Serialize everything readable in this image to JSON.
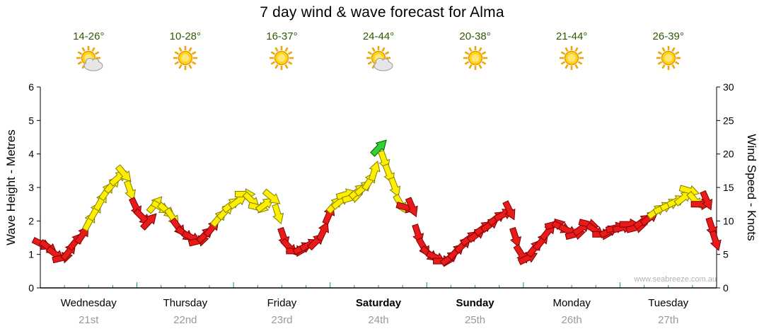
{
  "chart_data": {
    "type": "wind-arrow-timeseries",
    "title": "7 day wind & wave forecast for Alma",
    "watermark": "www.seabreeze.com.au",
    "y_left": {
      "label": "Wave Height - Metres",
      "min": 0,
      "max": 6,
      "ticks": [
        0,
        1,
        2,
        3,
        4,
        5,
        6
      ]
    },
    "y_right": {
      "label": "Wind Speed - Knots",
      "min": 0,
      "max": 30,
      "ticks": [
        0,
        5,
        10,
        15,
        20,
        25,
        30
      ]
    },
    "days": [
      {
        "name": "Wednesday",
        "date": "21st",
        "temp": "14-26°",
        "icon": "sun-cloud",
        "bold": false
      },
      {
        "name": "Thursday",
        "date": "22nd",
        "temp": "10-28°",
        "icon": "sun",
        "bold": false
      },
      {
        "name": "Friday",
        "date": "23rd",
        "temp": "16-37°",
        "icon": "sun",
        "bold": false
      },
      {
        "name": "Saturday",
        "date": "24th",
        "temp": "24-44°",
        "icon": "sun-cloud",
        "bold": true
      },
      {
        "name": "Sunday",
        "date": "25th",
        "temp": "20-38°",
        "icon": "sun",
        "bold": true
      },
      {
        "name": "Monday",
        "date": "26th",
        "temp": "21-44°",
        "icon": "sun",
        "bold": false
      },
      {
        "name": "Tuesday",
        "date": "27th",
        "temp": "26-39°",
        "icon": "sun",
        "bold": false
      }
    ],
    "colors": {
      "r": "#E81A1A",
      "y": "#FFEE00",
      "g": "#2FD12F"
    },
    "outline_colors": {
      "r": "#7E0000",
      "y": "#7E7E00",
      "g": "#005800"
    },
    "text_colors": {
      "temperature": "#2F5B00",
      "date": "#999999",
      "tick": "#000000",
      "time_tick": "#009999"
    },
    "series": [
      {
        "name": "Wind speed and direction",
        "unit": "knots",
        "x_unit": "days from Wednesday 21st",
        "points": [
          [
            0.02,
            6.5,
            "r"
          ],
          [
            0.09,
            6,
            "r"
          ],
          [
            0.16,
            5,
            "r"
          ],
          [
            0.23,
            4.5,
            "r"
          ],
          [
            0.3,
            5.5,
            "r"
          ],
          [
            0.37,
            7,
            "r"
          ],
          [
            0.44,
            8,
            "r"
          ],
          [
            0.51,
            10,
            "y"
          ],
          [
            0.57,
            11.5,
            "y"
          ],
          [
            0.63,
            13,
            "y"
          ],
          [
            0.69,
            14.5,
            "y"
          ],
          [
            0.75,
            15.5,
            "y"
          ],
          [
            0.81,
            16.5,
            "y"
          ],
          [
            0.87,
            17,
            "y"
          ],
          [
            0.93,
            14.5,
            "y"
          ],
          [
            0.99,
            12,
            "r"
          ],
          [
            1.06,
            10.5,
            "r"
          ],
          [
            1.13,
            10,
            "r"
          ],
          [
            1.19,
            12.5,
            "y"
          ],
          [
            1.25,
            12,
            "y"
          ],
          [
            1.31,
            11.5,
            "y"
          ],
          [
            1.37,
            10.5,
            "y"
          ],
          [
            1.43,
            9,
            "r"
          ],
          [
            1.5,
            8,
            "r"
          ],
          [
            1.57,
            7.5,
            "r"
          ],
          [
            1.64,
            7,
            "r"
          ],
          [
            1.71,
            8,
            "r"
          ],
          [
            1.78,
            9,
            "r"
          ],
          [
            1.85,
            10.5,
            "y"
          ],
          [
            1.92,
            11.5,
            "y"
          ],
          [
            1.98,
            12.5,
            "y"
          ],
          [
            2.05,
            13,
            "y"
          ],
          [
            2.12,
            14,
            "y"
          ],
          [
            2.19,
            13,
            "y"
          ],
          [
            2.26,
            12,
            "y"
          ],
          [
            2.33,
            12.5,
            "y"
          ],
          [
            2.4,
            13.5,
            "y"
          ],
          [
            2.46,
            11,
            "y"
          ],
          [
            2.52,
            7.5,
            "r"
          ],
          [
            2.58,
            6,
            "r"
          ],
          [
            2.65,
            5.5,
            "r"
          ],
          [
            2.72,
            6,
            "r"
          ],
          [
            2.79,
            6.5,
            "r"
          ],
          [
            2.86,
            7,
            "r"
          ],
          [
            2.93,
            8.5,
            "r"
          ],
          [
            2.99,
            11,
            "r"
          ],
          [
            3.05,
            12.5,
            "y"
          ],
          [
            3.11,
            13,
            "y"
          ],
          [
            3.17,
            14,
            "y"
          ],
          [
            3.23,
            13.5,
            "y"
          ],
          [
            3.29,
            14.5,
            "y"
          ],
          [
            3.35,
            15,
            "y"
          ],
          [
            3.41,
            16,
            "y"
          ],
          [
            3.46,
            17.5,
            "y"
          ],
          [
            3.51,
            21,
            "g"
          ],
          [
            3.56,
            19,
            "y"
          ],
          [
            3.61,
            17,
            "y"
          ],
          [
            3.67,
            15,
            "y"
          ],
          [
            3.73,
            12.5,
            "y"
          ],
          [
            3.79,
            12,
            "r"
          ],
          [
            3.85,
            12,
            "r"
          ],
          [
            3.91,
            8,
            "r"
          ],
          [
            3.97,
            6,
            "r"
          ],
          [
            4.03,
            5,
            "r"
          ],
          [
            4.1,
            4.5,
            "r"
          ],
          [
            4.17,
            4,
            "r"
          ],
          [
            4.24,
            4.5,
            "r"
          ],
          [
            4.31,
            5.5,
            "r"
          ],
          [
            4.38,
            6.5,
            "r"
          ],
          [
            4.45,
            7.5,
            "r"
          ],
          [
            4.52,
            8,
            "r"
          ],
          [
            4.59,
            9,
            "r"
          ],
          [
            4.66,
            9.5,
            "r"
          ],
          [
            4.73,
            10.5,
            "r"
          ],
          [
            4.8,
            11,
            "r"
          ],
          [
            4.86,
            11.5,
            "r"
          ],
          [
            4.92,
            7.5,
            "r"
          ],
          [
            4.98,
            5,
            "r"
          ],
          [
            5.05,
            4.5,
            "r"
          ],
          [
            5.12,
            6,
            "r"
          ],
          [
            5.19,
            7,
            "r"
          ],
          [
            5.26,
            8.5,
            "r"
          ],
          [
            5.33,
            9.5,
            "r"
          ],
          [
            5.4,
            9,
            "r"
          ],
          [
            5.47,
            8.5,
            "r"
          ],
          [
            5.54,
            8,
            "r"
          ],
          [
            5.61,
            9,
            "r"
          ],
          [
            5.68,
            9.5,
            "r"
          ],
          [
            5.75,
            8.5,
            "r"
          ],
          [
            5.82,
            8,
            "r"
          ],
          [
            5.89,
            8.5,
            "r"
          ],
          [
            5.96,
            9,
            "r"
          ],
          [
            6.03,
            9,
            "r"
          ],
          [
            6.1,
            9.5,
            "r"
          ],
          [
            6.17,
            9,
            "r"
          ],
          [
            6.24,
            10,
            "r"
          ],
          [
            6.31,
            10.5,
            "r"
          ],
          [
            6.38,
            11.5,
            "y"
          ],
          [
            6.45,
            12,
            "y"
          ],
          [
            6.52,
            12.5,
            "y"
          ],
          [
            6.59,
            13,
            "y"
          ],
          [
            6.66,
            13.5,
            "y"
          ],
          [
            6.72,
            14.5,
            "y"
          ],
          [
            6.78,
            13,
            "y"
          ],
          [
            6.84,
            12.5,
            "r"
          ],
          [
            6.9,
            13,
            "r"
          ],
          [
            6.95,
            9,
            "r"
          ],
          [
            6.99,
            7,
            "r"
          ]
        ]
      }
    ]
  }
}
